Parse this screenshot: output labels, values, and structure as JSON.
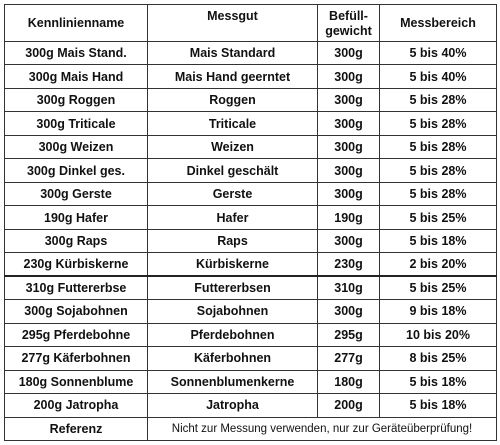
{
  "headers": {
    "kennlinienname": "Kennlinienname",
    "messgut": "Messgut",
    "befuell_line1": "Befüll-",
    "befuell_line2": "gewicht",
    "messbereich": "Messbereich"
  },
  "rows": [
    {
      "kennlinie": "300g Mais Stand.",
      "messgut": "Mais Standard",
      "gewicht": "300g",
      "bereich": "5 bis 40%"
    },
    {
      "kennlinie": "300g Mais Hand",
      "messgut": "Mais Hand geerntet",
      "gewicht": "300g",
      "bereich": "5 bis 40%"
    },
    {
      "kennlinie": "300g Roggen",
      "messgut": "Roggen",
      "gewicht": "300g",
      "bereich": "5 bis 28%"
    },
    {
      "kennlinie": "300g Triticale",
      "messgut": "Triticale",
      "gewicht": "300g",
      "bereich": "5 bis 28%"
    },
    {
      "kennlinie": "300g Weizen",
      "messgut": "Weizen",
      "gewicht": "300g",
      "bereich": "5 bis 28%"
    },
    {
      "kennlinie": "300g Dinkel ges.",
      "messgut": "Dinkel geschält",
      "gewicht": "300g",
      "bereich": "5 bis 28%"
    },
    {
      "kennlinie": "300g Gerste",
      "messgut": "Gerste",
      "gewicht": "300g",
      "bereich": "5 bis 28%"
    },
    {
      "kennlinie": "190g Hafer",
      "messgut": "Hafer",
      "gewicht": "190g",
      "bereich": "5 bis 25%"
    },
    {
      "kennlinie": "300g Raps",
      "messgut": "Raps",
      "gewicht": "300g",
      "bereich": "5 bis 18%"
    },
    {
      "kennlinie": "230g Kürbiskerne",
      "messgut": "Kürbiskerne",
      "gewicht": "230g",
      "bereich": "2 bis 20%"
    },
    {
      "kennlinie": "310g Futtererbse",
      "messgut": "Futtererbsen",
      "gewicht": "310g",
      "bereich": "5 bis 25%"
    },
    {
      "kennlinie": "300g Sojabohnen",
      "messgut": "Sojabohnen",
      "gewicht": "300g",
      "bereich": "9 bis 18%"
    },
    {
      "kennlinie": "295g Pferdebohne",
      "messgut": "Pferdebohnen",
      "gewicht": "295g",
      "bereich": "10 bis 20%"
    },
    {
      "kennlinie": "277g Käferbohnen",
      "messgut": "Käferbohnen",
      "gewicht": "277g",
      "bereich": "8 bis 25%"
    },
    {
      "kennlinie": "180g Sonnenblume",
      "messgut": "Sonnenblumenkerne",
      "gewicht": "180g",
      "bereich": "5 bis 18%"
    },
    {
      "kennlinie": "200g Jatropha",
      "messgut": "Jatropha",
      "gewicht": "200g",
      "bereich": "5 bis 18%"
    }
  ],
  "referenz": {
    "label": "Referenz",
    "note": "Nicht zur Messung verwenden, nur zur Geräteüberprüfung!"
  }
}
